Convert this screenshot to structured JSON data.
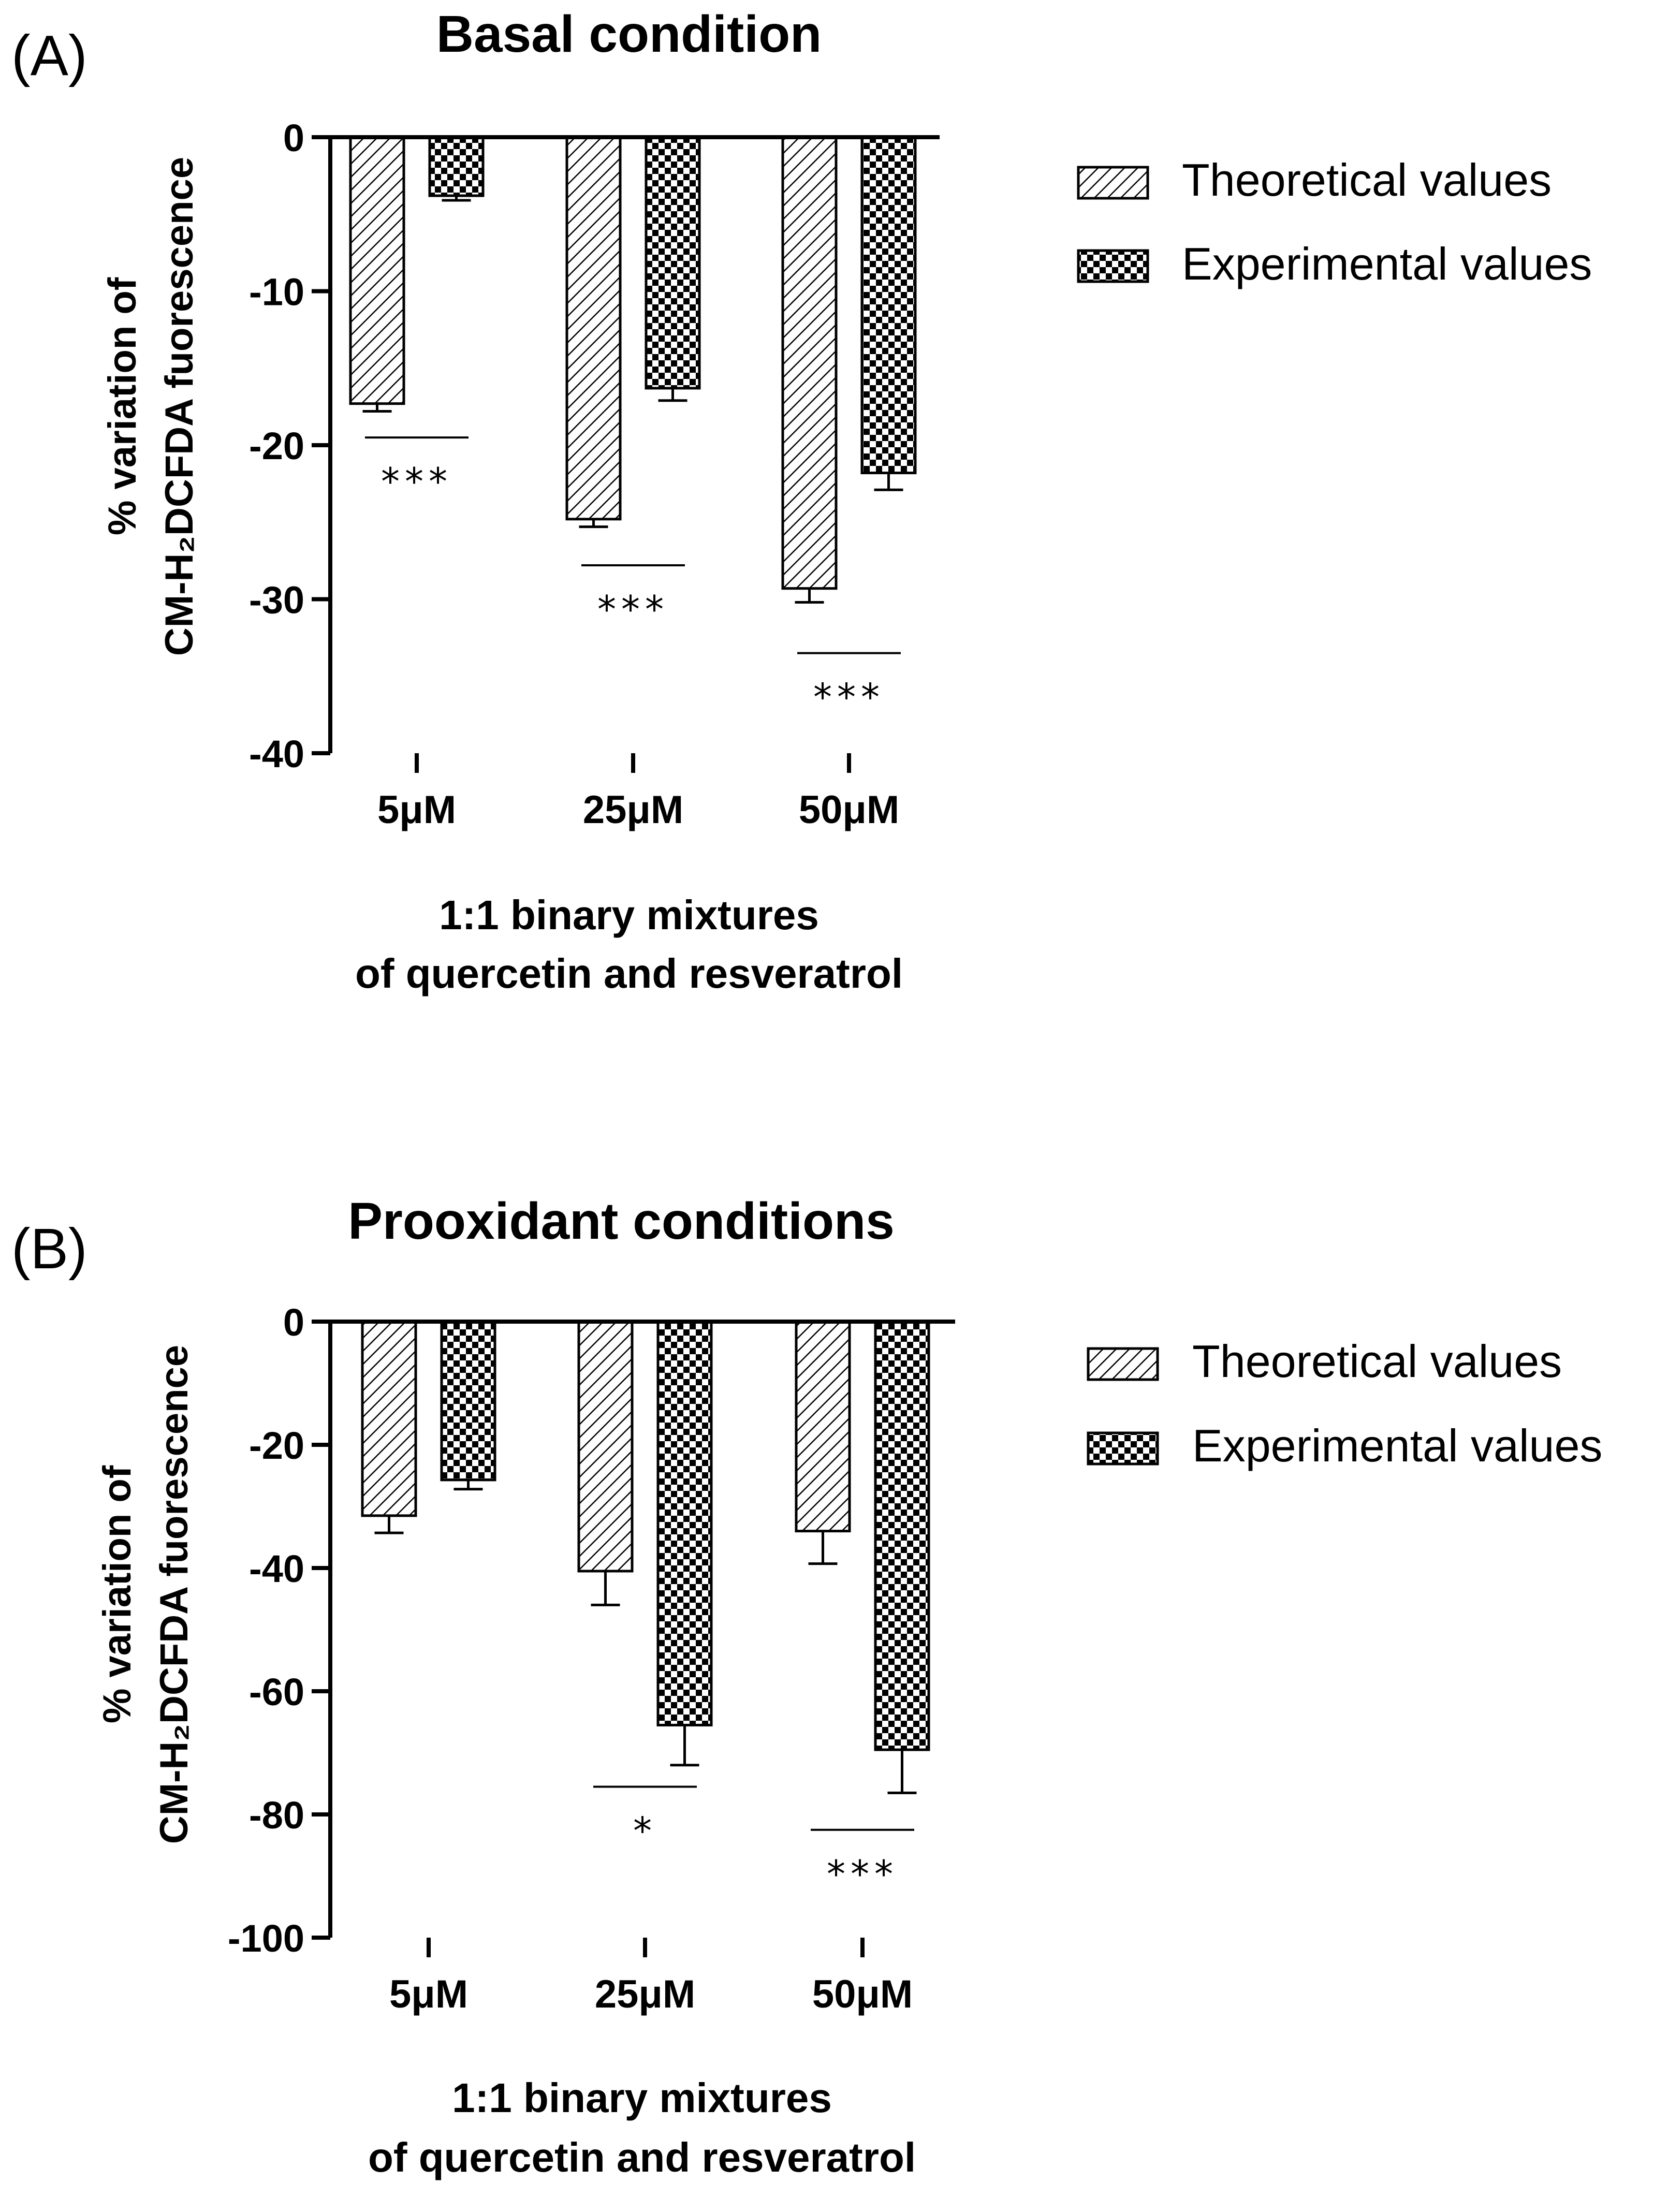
{
  "figure": {
    "panel_a_label": "(A)",
    "panel_b_label": "(B)"
  },
  "legend": {
    "theoretical": "Theoretical values",
    "experimental": "Experimental values"
  },
  "colors": {
    "ink": "#000000",
    "fill": "#ffffff"
  },
  "chart_data": [
    {
      "type": "bar",
      "panel": "(A)",
      "title": "Basal condition",
      "ylabel": [
        "% variation of",
        "CM-H₂DCFDA fuorescence"
      ],
      "xlabel": [
        "1:1 binary mixtures",
        "of quercetin and resveratrol"
      ],
      "categories": [
        "5μM",
        "25μM",
        "50μM"
      ],
      "ylim": [
        -40,
        0
      ],
      "yticks": [
        0,
        -10,
        -20,
        -30,
        -40
      ],
      "legend_position": "top-right",
      "grid": false,
      "series": [
        {
          "name": "Theoretical values",
          "pattern": "hatch",
          "values": [
            -17.3,
            -24.8,
            -29.3
          ],
          "errors": [
            0.5,
            0.5,
            0.9
          ]
        },
        {
          "name": "Experimental values",
          "pattern": "checker",
          "values": [
            -3.8,
            -16.3,
            -21.8
          ],
          "errors": [
            0.3,
            0.8,
            1.1
          ]
        }
      ],
      "significance": [
        {
          "category": "5μM",
          "y": -19.5,
          "label": "***"
        },
        {
          "category": "25μM",
          "y": -27.8,
          "label": "***"
        },
        {
          "category": "50μM",
          "y": -33.5,
          "label": "***"
        }
      ]
    },
    {
      "type": "bar",
      "panel": "(B)",
      "title": "Prooxidant conditions",
      "ylabel": [
        "% variation of",
        "CM-H₂DCFDA fuorescence"
      ],
      "xlabel": [
        "1:1 binary mixtures",
        "of quercetin and resveratrol"
      ],
      "categories": [
        "5μM",
        "25μM",
        "50μM"
      ],
      "ylim": [
        -100,
        0
      ],
      "yticks": [
        0,
        -20,
        -40,
        -60,
        -80,
        -100
      ],
      "legend_position": "top-right",
      "grid": false,
      "series": [
        {
          "name": "Theoretical values",
          "pattern": "hatch",
          "values": [
            -31.5,
            -40.5,
            -34
          ],
          "errors": [
            2.8,
            5.5,
            5.3
          ]
        },
        {
          "name": "Experimental values",
          "pattern": "checker",
          "values": [
            -25.7,
            -65.5,
            -69.5
          ],
          "errors": [
            1.5,
            6.5,
            7
          ]
        }
      ],
      "significance": [
        {
          "category": "25μM",
          "y": -75.5,
          "label": "*"
        },
        {
          "category": "50μM",
          "y": -82.5,
          "label": "***"
        }
      ]
    }
  ]
}
